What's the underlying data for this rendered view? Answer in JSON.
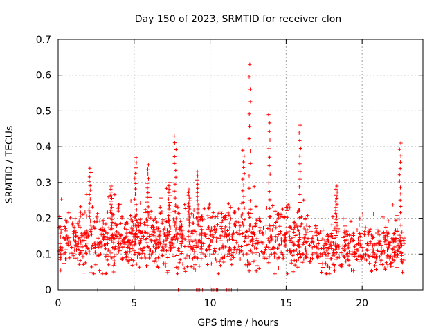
{
  "chart_data": {
    "type": "scatter",
    "title": "Day 150 of 2023, SRMTID for receiver clon",
    "xlabel": "GPS time / hours",
    "ylabel": "SRMTID / TECUs",
    "xlim": [
      0,
      24
    ],
    "ylim": [
      0,
      0.7
    ],
    "xticks": [
      "0",
      "5",
      "10",
      "15",
      "20"
    ],
    "yticks": [
      "0",
      "0.1",
      "0.2",
      "0.3",
      "0.4",
      "0.5",
      "0.6",
      "0.7"
    ],
    "grid": true,
    "marker": "+",
    "color": "#ff0000",
    "baseline": "median SRMTID roughly 0.14 TECUs, ranging 0.05 to 0.30 most of the day, with a quieter band near 0.12 after 17 h",
    "spikes": [
      {
        "x": 2.1,
        "peak": 0.34
      },
      {
        "x": 3.5,
        "peak": 0.29
      },
      {
        "x": 5.1,
        "peak": 0.37
      },
      {
        "x": 5.9,
        "peak": 0.35
      },
      {
        "x": 7.3,
        "peak": 0.3
      },
      {
        "x": 7.7,
        "peak": 0.43
      },
      {
        "x": 8.6,
        "peak": 0.28
      },
      {
        "x": 9.2,
        "peak": 0.33
      },
      {
        "x": 12.2,
        "peak": 0.39
      },
      {
        "x": 12.6,
        "peak": 0.63
      },
      {
        "x": 13.9,
        "peak": 0.49
      },
      {
        "x": 15.9,
        "peak": 0.46
      },
      {
        "x": 18.3,
        "peak": 0.29
      },
      {
        "x": 22.5,
        "peak": 0.41
      }
    ],
    "zero_values_x": [
      2.6,
      7.9,
      9.1,
      9.2,
      9.3,
      9.4,
      9.5,
      10.0,
      10.1,
      10.2,
      10.3,
      10.4,
      10.5,
      11.1,
      11.2,
      11.3,
      11.4,
      11.8
    ]
  }
}
